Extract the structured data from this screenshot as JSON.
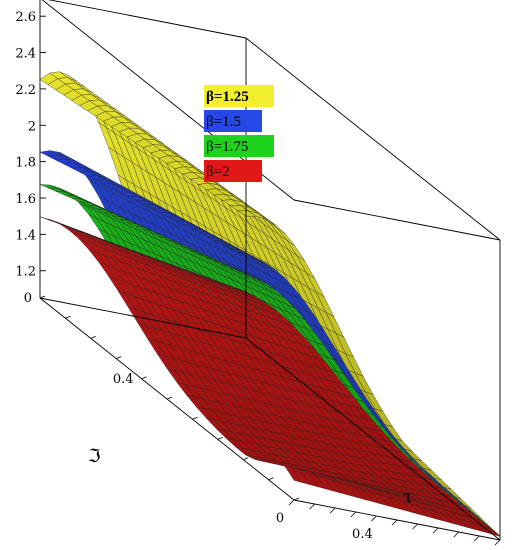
{
  "chart_data": {
    "type": "surface",
    "title": "",
    "axes": {
      "x": {
        "label": "τ",
        "ticks": [
          "0",
          "0.4"
        ]
      },
      "y": {
        "label": "ℑ",
        "ticks": [
          "0",
          "0.4"
        ]
      },
      "z": {
        "label": "",
        "ticks": [
          "1.2",
          "1.4",
          "1.6",
          "1.8",
          "2",
          "2.2",
          "2.4",
          "2.6"
        ],
        "range": [
          1.05,
          2.7
        ]
      }
    },
    "grid": false,
    "box": true,
    "legend": {
      "position": "top-center",
      "entries": [
        {
          "label": "β=1.25",
          "color": "#f2ef2e",
          "bold": true
        },
        {
          "label": "β=1.5",
          "color": "#2748e8",
          "bold": false
        },
        {
          "label": "β=1.75",
          "color": "#1ed21e",
          "bold": false
        },
        {
          "label": "β=2",
          "color": "#e01818",
          "bold": false
        }
      ]
    },
    "series": [
      {
        "name": "β=1.25",
        "color": "#f2ef2e",
        "peak_z": 2.4,
        "edge_z_at_tau0": 1.55
      },
      {
        "name": "β=1.5",
        "color": "#2748e8",
        "peak_z": 1.95,
        "edge_z_at_tau0": 1.3
      },
      {
        "name": "β=1.75",
        "color": "#1ed21e",
        "peak_z": 1.75,
        "edge_z_at_tau0": 1.2
      },
      {
        "name": "β=2",
        "color": "#e01818",
        "peak_z": 1.55,
        "edge_z_at_tau0": 1.12
      }
    ]
  }
}
